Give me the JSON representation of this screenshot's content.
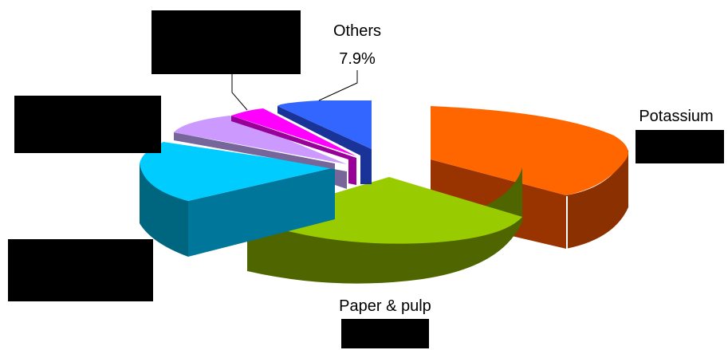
{
  "chart_data": {
    "type": "pie",
    "style": "3d-exploded",
    "legend": "none",
    "slices": [
      {
        "label": "Potassium perchlorate",
        "value": null,
        "color": "#FF6600"
      },
      {
        "label": "Paper & pulp",
        "value": null,
        "color": "#99CC00"
      },
      {
        "label": "",
        "value": null,
        "color": "#00CCFF"
      },
      {
        "label": "",
        "value": null,
        "color": "#CC99FF"
      },
      {
        "label": "",
        "value": null,
        "color": "#FF00FF"
      },
      {
        "label": "Others",
        "value": 7.9,
        "value_text": "7.9%",
        "color": "#3366FF"
      }
    ],
    "redacted_labels": 6
  }
}
